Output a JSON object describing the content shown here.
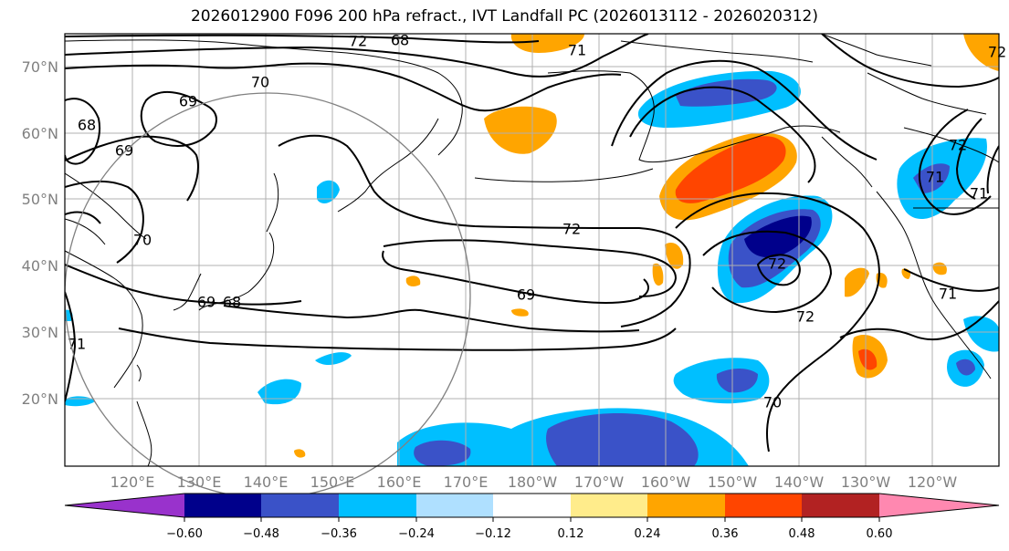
{
  "title": "2026012900 F096 200 hPa refract., IVT Landfall PC (2026013112 - 2026020312)",
  "map": {
    "lat_labels": [
      "70°N",
      "60°N",
      "50°N",
      "40°N",
      "30°N",
      "20°N"
    ],
    "lon_labels": [
      "120°E",
      "130°E",
      "140°E",
      "150°E",
      "160°E",
      "170°E",
      "180°W",
      "170°W",
      "160°W",
      "150°W",
      "140°W",
      "130°W",
      "120°W"
    ],
    "contour_labels": [
      "72",
      "71",
      "70",
      "68",
      "69",
      "69",
      "70",
      "71",
      "72",
      "69",
      "69",
      "68",
      "71",
      "72",
      "72",
      "70",
      "71",
      "72",
      "71",
      "72",
      "68"
    ]
  },
  "colorbar": {
    "tick_labels": [
      "−0.60",
      "−0.48",
      "−0.36",
      "−0.24",
      "−0.12",
      "0.12",
      "0.24",
      "0.36",
      "0.48",
      "0.60"
    ],
    "colors": [
      "#9932cc",
      "#00008b",
      "#3a52c8",
      "#00bfff",
      "#afe0ff",
      "#ffffff",
      "#ffec8b",
      "#ffa500",
      "#ff4500",
      "#b22222",
      "#ff88b0"
    ]
  }
}
